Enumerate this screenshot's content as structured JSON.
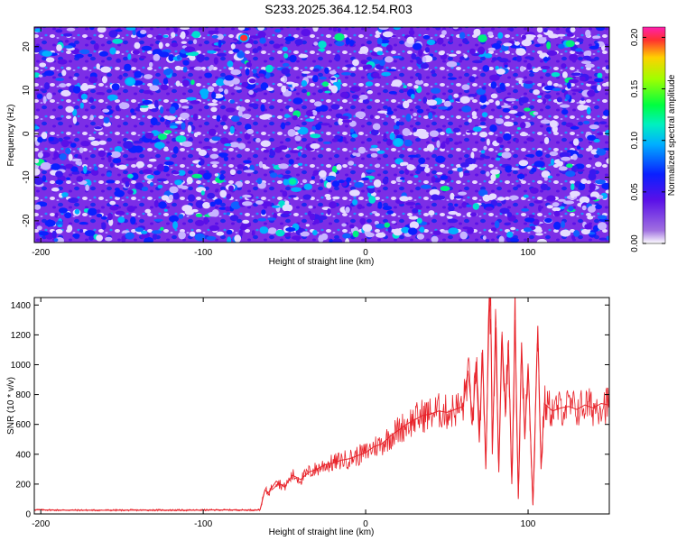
{
  "title": "S233.2025.364.12.54.R03",
  "chart_data": [
    {
      "type": "heatmap",
      "xlabel": "Height of straight line (km)",
      "ylabel": "Frequency (Hz)",
      "xlim": [
        -204,
        150
      ],
      "ylim": [
        -25,
        24.5
      ],
      "x_ticks": [
        -200,
        -100,
        0,
        100
      ],
      "y_ticks": [
        -20,
        -10,
        0,
        10,
        20
      ],
      "description_values": "noise-like normalized spectral amplitude, mostly below 0.05 with scattered peaks up to ~0.21",
      "hot_spots": [
        {
          "x": -75,
          "y": 22,
          "value": 0.21
        },
        {
          "x": 20,
          "y": -2,
          "value": 0.06
        },
        {
          "x": -145,
          "y": 12,
          "value": 0.09
        },
        {
          "x": -45,
          "y": -11,
          "value": 0.12
        }
      ],
      "colorbar": {
        "label": "Normalized spectral amplitude",
        "range": [
          0.0,
          0.21
        ],
        "ticks": [
          "0.00",
          "0.05",
          "0.10",
          "0.15",
          "0.20"
        ]
      }
    },
    {
      "type": "line",
      "xlabel": "Height of straight line (km)",
      "ylabel": "SNR (10 * v/v)",
      "xlim": [
        -204,
        150
      ],
      "ylim": [
        0,
        1450
      ],
      "x_ticks": [
        -200,
        -100,
        0,
        100
      ],
      "y_ticks": [
        0,
        200,
        400,
        600,
        800,
        1000,
        1200,
        1400
      ],
      "series": [
        {
          "name": "SNR",
          "color": "#e8232a",
          "x": [
            -204,
            -190,
            -170,
            -150,
            -130,
            -110,
            -90,
            -70,
            -65,
            -62,
            -60,
            -55,
            -50,
            -45,
            -40,
            -35,
            -30,
            -25,
            -20,
            -15,
            -10,
            -5,
            0,
            5,
            10,
            15,
            20,
            25,
            30,
            35,
            40,
            45,
            50,
            55,
            60,
            63,
            66,
            68,
            70,
            72,
            74,
            76,
            77,
            78,
            80,
            82,
            84,
            86,
            88,
            90,
            92,
            94,
            96,
            98,
            100,
            103,
            106,
            108,
            110,
            115,
            120,
            125,
            130,
            135,
            140,
            145,
            150
          ],
          "y": [
            28,
            26,
            25,
            25,
            26,
            25,
            27,
            26,
            28,
            160,
            140,
            220,
            180,
            260,
            230,
            280,
            300,
            330,
            340,
            360,
            370,
            390,
            410,
            450,
            470,
            520,
            560,
            600,
            630,
            660,
            670,
            690,
            680,
            700,
            720,
            960,
            620,
            1020,
            480,
            1100,
            300,
            1350,
            1450,
            400,
            1250,
            280,
            1200,
            700,
            1100,
            200,
            1300,
            100,
            1150,
            500,
            1000,
            60,
            1260,
            300,
            740,
            690,
            710,
            720,
            700,
            730,
            710,
            740,
            730
          ]
        }
      ]
    }
  ]
}
